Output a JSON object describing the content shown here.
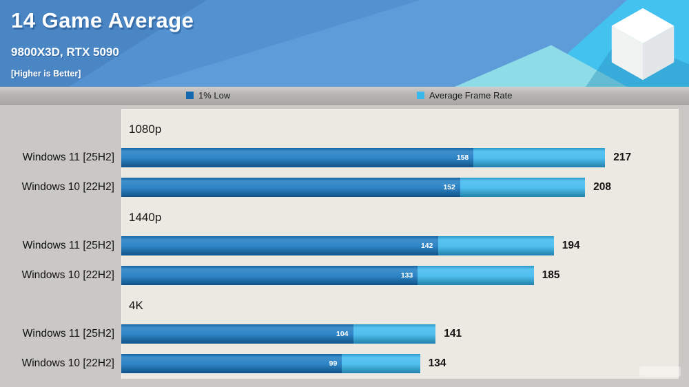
{
  "header": {
    "title": "14 Game Average",
    "subtitle": "9800X3D, RTX 5090",
    "note": "[Higher is Better]"
  },
  "legend": {
    "low": {
      "label": "1% Low",
      "color": "#1468b0"
    },
    "avg": {
      "label": "Average Frame Rate",
      "color": "#38b8eb"
    }
  },
  "chart_data": {
    "type": "bar",
    "orientation": "horizontal",
    "title": "14 Game Average",
    "subtitle": "9800X3D, RTX 5090",
    "note": "[Higher is Better]",
    "series_names": [
      "1% Low",
      "Average Frame Rate"
    ],
    "scale_max": 250,
    "colors": {
      "low": "#1777c0",
      "avg": "#2eb3ec"
    },
    "groups": [
      {
        "label": "1080p",
        "rows": [
          {
            "label": "Windows 11 [25H2]",
            "low": 158,
            "avg": 217
          },
          {
            "label": "Windows 10 [22H2]",
            "low": 152,
            "avg": 208
          }
        ]
      },
      {
        "label": "1440p",
        "rows": [
          {
            "label": "Windows 11 [25H2]",
            "low": 142,
            "avg": 194
          },
          {
            "label": "Windows 10 [22H2]",
            "low": 133,
            "avg": 185
          }
        ]
      },
      {
        "label": "4K",
        "rows": [
          {
            "label": "Windows 11 [25H2]",
            "low": 104,
            "avg": 141
          },
          {
            "label": "Windows 10 [22H2]",
            "low": 99,
            "avg": 134
          }
        ]
      }
    ]
  }
}
